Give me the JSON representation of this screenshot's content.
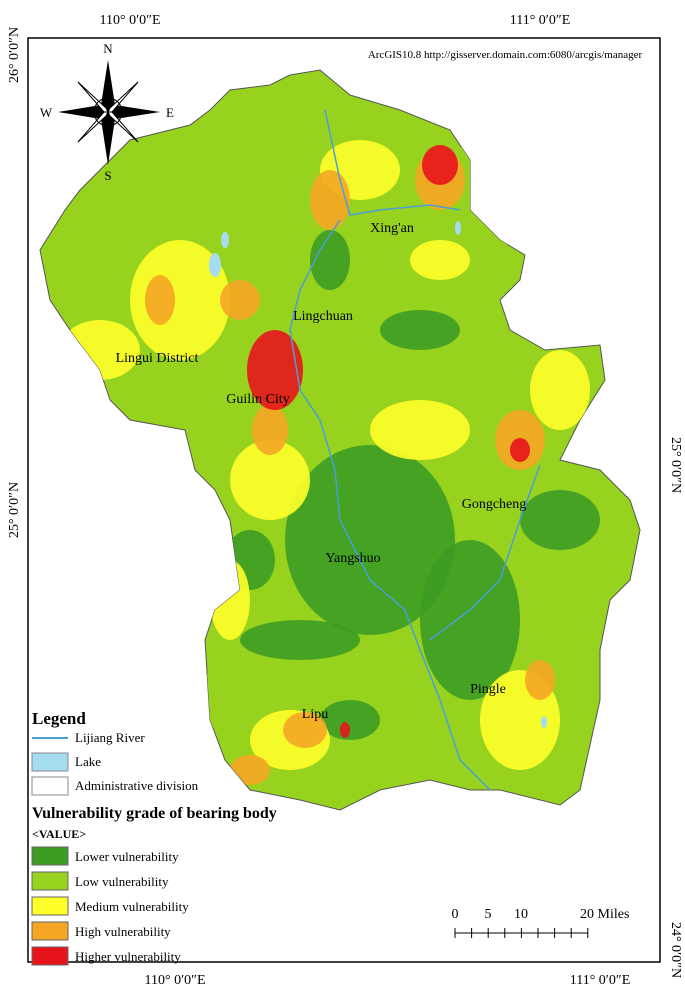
{
  "coordinates": {
    "top": [
      "110° 0′0″E",
      "111° 0′0″E"
    ],
    "bottom": [
      "110° 0′0″E",
      "111° 0′0″E"
    ],
    "left": [
      "26° 0′0″N",
      "25° 0′0″N"
    ],
    "right": [
      "25° 0′0″N",
      "24° 0′0″N"
    ]
  },
  "credit": "ArcGIS10.8 http://gisserver.domain.com:6080/arcgis/manager",
  "compass": {
    "north": "N",
    "east": "E",
    "south": "S",
    "west": "W"
  },
  "places": [
    "Xing'an",
    "Lingchuan",
    "Lingui District",
    "Guilin City",
    "Gongcheng",
    "Yangshuo",
    "Pingle",
    "Lipu"
  ],
  "legend": {
    "title": "Legend",
    "items": [
      {
        "label": "Lijiang River",
        "color": "#4a9fd8"
      },
      {
        "label": "Lake",
        "color": "#a6dcf0"
      },
      {
        "label": "Administrative division",
        "color": "#ffffff"
      }
    ],
    "subtitle": "Vulnerability grade of bearing body",
    "value_header": "<VALUE>",
    "grades": [
      {
        "label": "Lower vulnerability",
        "color": "#3c9c22"
      },
      {
        "label": "Low vulnerability",
        "color": "#96d21e"
      },
      {
        "label": "Medium vulnerability",
        "color": "#ffff2a"
      },
      {
        "label": "High vulnerability",
        "color": "#f5a623"
      },
      {
        "label": "Higher vulnerability",
        "color": "#e8141c"
      }
    ]
  },
  "scale_bar": {
    "labels": [
      "0",
      "5",
      "10",
      "20 Miles"
    ]
  }
}
